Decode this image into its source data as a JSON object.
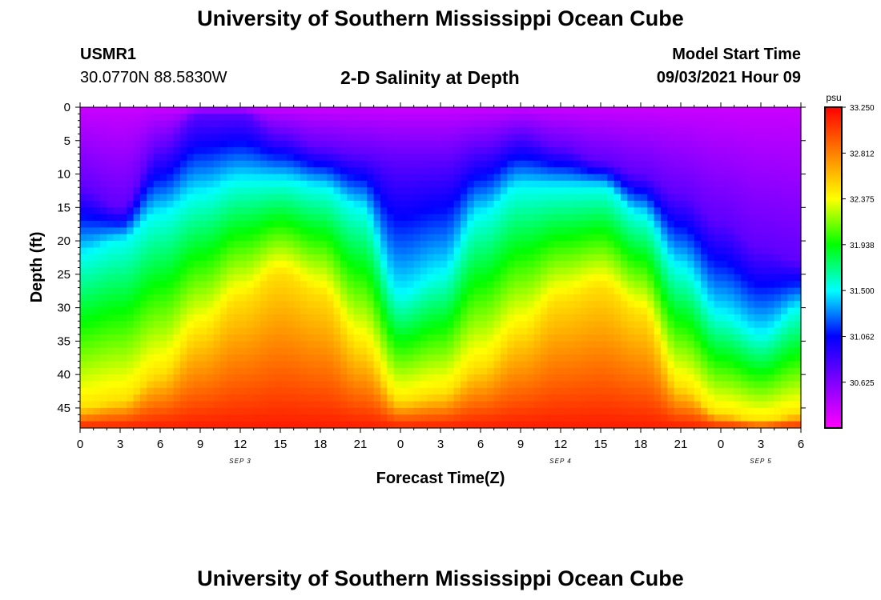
{
  "page": {
    "title_top": "University of Southern Mississippi Ocean Cube",
    "title_bottom": "University of Southern Mississippi Ocean Cube",
    "station": "USMR1",
    "coords": "30.0770N  88.5830W",
    "subtitle": "2-D Salinity at Depth",
    "model_start_label": "Model Start Time",
    "model_start_value": "09/03/2021 Hour 09"
  },
  "chart_data": {
    "type": "heatmap",
    "title": "2-D Salinity at Depth",
    "xlabel": "Forecast Time(Z)",
    "ylabel": "Depth (ft)",
    "x_hours_range": [
      0,
      54
    ],
    "x_tick_labels": [
      "0",
      "3",
      "6",
      "9",
      "12",
      "15",
      "18",
      "21",
      "0",
      "3",
      "6",
      "9",
      "12",
      "15",
      "18",
      "21",
      "0",
      "3",
      "6"
    ],
    "date_labels": [
      "SEP 3",
      "SEP 4",
      "SEP 5"
    ],
    "y_range": [
      0,
      48
    ],
    "y_ticks": [
      0,
      5,
      10,
      15,
      20,
      25,
      30,
      35,
      40,
      45
    ],
    "colorbar": {
      "unit": "psu",
      "range": [
        30.188,
        33.25
      ],
      "tick_labels": [
        "33.250",
        "32.812",
        "32.375",
        "31.938",
        "31.500",
        "31.062",
        "30.625"
      ],
      "colors": [
        "#ff00ff",
        "#8000ff",
        "#0000ff",
        "#00ffff",
        "#00ff00",
        "#ffff00",
        "#ff8000",
        "#ff0000"
      ]
    },
    "isohaline_depths_ft": {
      "hours": [
        0,
        3,
        6,
        9,
        12,
        15,
        18,
        21,
        24,
        27,
        30,
        33,
        36,
        39,
        42,
        45,
        48,
        51,
        54
      ],
      "upper_fresh_boundary": [
        12,
        15,
        6,
        1,
        1,
        4,
        6,
        7,
        8,
        8,
        6,
        4,
        6,
        8,
        10,
        13,
        17,
        21,
        23
      ],
      "halocline_cyan": [
        22,
        20,
        16,
        13,
        11,
        11,
        12,
        15,
        28,
        25,
        16,
        12,
        12,
        12,
        16,
        24,
        31,
        34,
        30
      ],
      "high_salinity_top": [
        45,
        44,
        40,
        34,
        29,
        25,
        28,
        36,
        44,
        43,
        39,
        34,
        29,
        27,
        31,
        42,
        46,
        47,
        46
      ]
    }
  }
}
